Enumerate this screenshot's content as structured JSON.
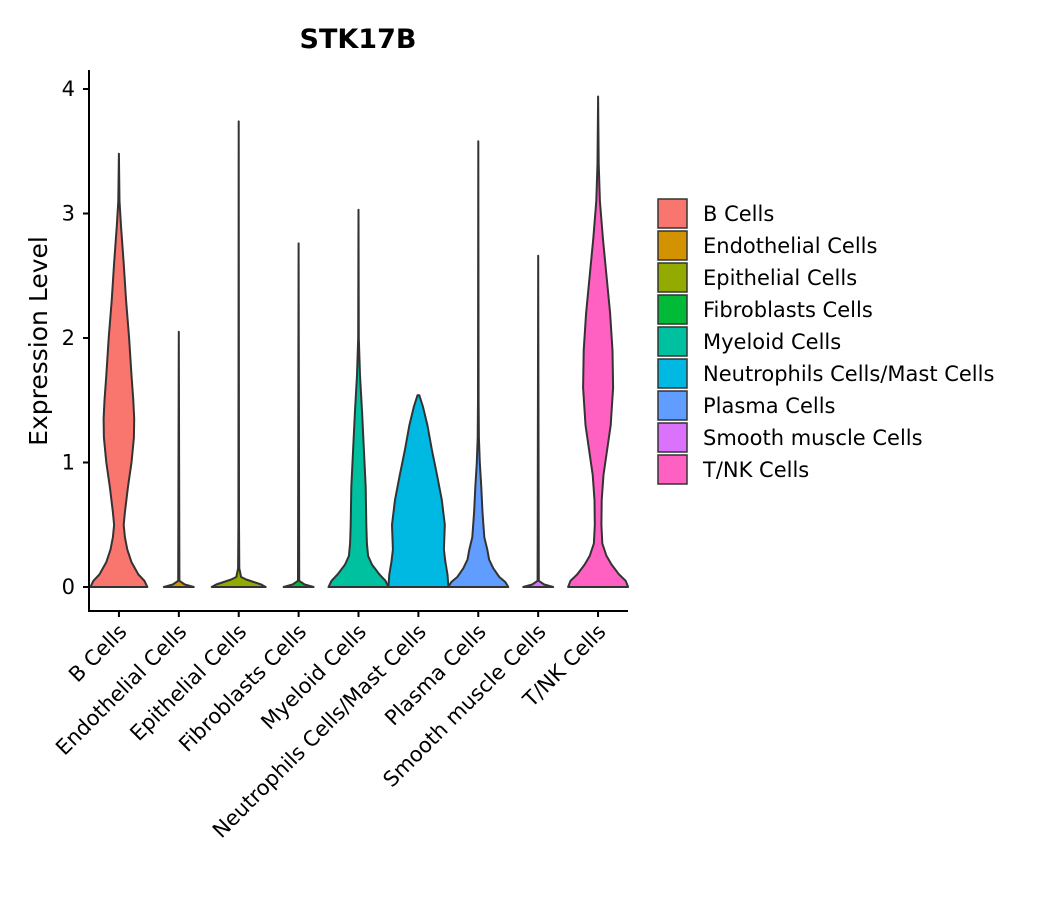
{
  "chart_data": {
    "type": "violin",
    "title": "STK17B",
    "xlabel": "",
    "ylabel": "Expression Level",
    "ylim": [
      -0.2,
      4.15
    ],
    "yticks": [
      0,
      1,
      2,
      3,
      4
    ],
    "categories": [
      "B Cells",
      "Endothelial Cells",
      "Epithelial Cells",
      "Fibroblasts Cells",
      "Myeloid Cells",
      "Neutrophils Cells/Mast Cells",
      "Plasma Cells",
      "Smooth muscle Cells",
      "T/NK Cells"
    ],
    "colors": [
      "#F8766D",
      "#D39200",
      "#93AA00",
      "#00BA38",
      "#00C19F",
      "#00B9E3",
      "#619CFF",
      "#DB72FB",
      "#FF61C3"
    ],
    "max_values": [
      3.48,
      2.05,
      3.74,
      2.76,
      3.03,
      1.54,
      3.58,
      2.66,
      3.94
    ],
    "density_profiles": [
      [
        [
          0,
          0.95
        ],
        [
          0.05,
          0.85
        ],
        [
          0.1,
          0.65
        ],
        [
          0.2,
          0.42
        ],
        [
          0.3,
          0.28
        ],
        [
          0.4,
          0.2
        ],
        [
          0.5,
          0.16
        ],
        [
          0.6,
          0.2
        ],
        [
          0.8,
          0.3
        ],
        [
          1.0,
          0.42
        ],
        [
          1.2,
          0.5
        ],
        [
          1.35,
          0.51
        ],
        [
          1.5,
          0.48
        ],
        [
          1.7,
          0.42
        ],
        [
          2.0,
          0.34
        ],
        [
          2.3,
          0.24
        ],
        [
          2.6,
          0.16
        ],
        [
          2.9,
          0.07
        ],
        [
          3.1,
          0.02
        ],
        [
          3.48,
          0.0
        ]
      ],
      [
        [
          0,
          0.5
        ],
        [
          0.02,
          0.2
        ],
        [
          0.05,
          0.02
        ],
        [
          2.05,
          0.0
        ]
      ],
      [
        [
          0,
          0.9
        ],
        [
          0.02,
          0.75
        ],
        [
          0.04,
          0.5
        ],
        [
          0.06,
          0.25
        ],
        [
          0.08,
          0.08
        ],
        [
          0.15,
          0.02
        ],
        [
          0.5,
          0.01
        ],
        [
          3.74,
          0.0
        ]
      ],
      [
        [
          0,
          0.5
        ],
        [
          0.02,
          0.2
        ],
        [
          0.05,
          0.02
        ],
        [
          2.76,
          0.0
        ]
      ],
      [
        [
          0,
          1.0
        ],
        [
          0.05,
          0.9
        ],
        [
          0.1,
          0.7
        ],
        [
          0.18,
          0.45
        ],
        [
          0.25,
          0.32
        ],
        [
          0.35,
          0.28
        ],
        [
          0.5,
          0.26
        ],
        [
          0.8,
          0.24
        ],
        [
          1.1,
          0.18
        ],
        [
          1.4,
          0.12
        ],
        [
          1.7,
          0.05
        ],
        [
          2.0,
          0.01
        ],
        [
          3.03,
          0.0
        ]
      ],
      [
        [
          0,
          1.0
        ],
        [
          0.1,
          0.97
        ],
        [
          0.2,
          0.9
        ],
        [
          0.3,
          0.85
        ],
        [
          0.5,
          0.88
        ],
        [
          0.7,
          0.78
        ],
        [
          0.9,
          0.62
        ],
        [
          1.1,
          0.45
        ],
        [
          1.3,
          0.3
        ],
        [
          1.45,
          0.15
        ],
        [
          1.54,
          0.03
        ]
      ],
      [
        [
          0,
          1.0
        ],
        [
          0.04,
          0.9
        ],
        [
          0.08,
          0.7
        ],
        [
          0.15,
          0.5
        ],
        [
          0.22,
          0.36
        ],
        [
          0.3,
          0.3
        ],
        [
          0.4,
          0.2
        ],
        [
          0.6,
          0.14
        ],
        [
          0.8,
          0.1
        ],
        [
          1.0,
          0.05
        ],
        [
          1.2,
          0.02
        ],
        [
          1.5,
          0.01
        ],
        [
          3.58,
          0.0
        ]
      ],
      [
        [
          0,
          0.5
        ],
        [
          0.02,
          0.2
        ],
        [
          0.05,
          0.02
        ],
        [
          2.66,
          0.0
        ]
      ],
      [
        [
          0,
          1.0
        ],
        [
          0.05,
          0.92
        ],
        [
          0.1,
          0.7
        ],
        [
          0.18,
          0.45
        ],
        [
          0.25,
          0.28
        ],
        [
          0.35,
          0.14
        ],
        [
          0.5,
          0.11
        ],
        [
          0.7,
          0.12
        ],
        [
          0.9,
          0.18
        ],
        [
          1.1,
          0.3
        ],
        [
          1.3,
          0.42
        ],
        [
          1.6,
          0.5
        ],
        [
          1.9,
          0.48
        ],
        [
          2.2,
          0.4
        ],
        [
          2.5,
          0.28
        ],
        [
          2.8,
          0.16
        ],
        [
          3.1,
          0.06
        ],
        [
          3.4,
          0.02
        ],
        [
          3.94,
          0.0
        ]
      ]
    ],
    "legend": {
      "position": "right",
      "entries": [
        "B Cells",
        "Endothelial Cells",
        "Epithelial Cells",
        "Fibroblasts Cells",
        "Myeloid Cells",
        "Neutrophils Cells/Mast Cells",
        "Plasma Cells",
        "Smooth muscle Cells",
        "T/NK Cells"
      ]
    },
    "grid": false
  }
}
